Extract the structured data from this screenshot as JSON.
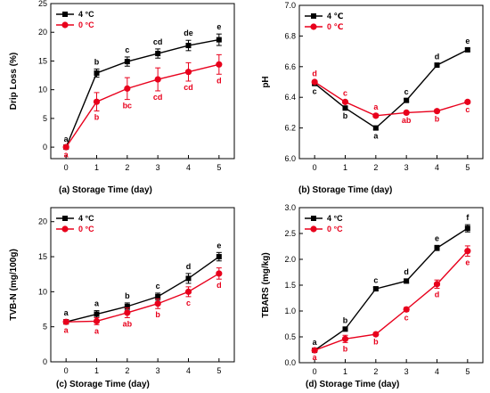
{
  "chart_data": [
    {
      "type": "line",
      "caption": "(a)   Storage Time (day)",
      "ylabel": "Drip Loss (%)",
      "xlim": [
        -0.5,
        5.5
      ],
      "ylim": [
        -2,
        25
      ],
      "x_ticks": [
        "0",
        "1",
        "2",
        "3",
        "4",
        "5"
      ],
      "y_ticks": [
        0,
        5,
        10,
        15,
        20,
        25
      ],
      "legend_position": "top-left",
      "series": [
        {
          "name": "4 °C",
          "color": "#000000",
          "x": [
            0,
            1,
            2,
            3,
            4,
            5
          ],
          "y": [
            0,
            12.9,
            14.9,
            16.3,
            17.7,
            18.7
          ],
          "err": [
            0.2,
            0.7,
            0.8,
            0.8,
            0.9,
            1.0
          ],
          "letters": [
            "a",
            "b",
            "c",
            "cd",
            "de",
            "e"
          ]
        },
        {
          "name": "0 °C",
          "color": "#e8001c",
          "x": [
            0,
            1,
            2,
            3,
            4,
            5
          ],
          "y": [
            0,
            7.9,
            10.2,
            11.8,
            13.1,
            14.4
          ],
          "err": [
            0.2,
            1.6,
            1.9,
            2.0,
            1.6,
            1.7
          ],
          "letters": [
            "a",
            "b",
            "bc",
            "cd",
            "cd",
            "d"
          ]
        }
      ]
    },
    {
      "type": "line",
      "caption": "(b)   Storage Time (day)",
      "ylabel": "pH",
      "xlim": [
        -0.5,
        5.5
      ],
      "ylim": [
        6.0,
        7.0
      ],
      "x_ticks": [
        "0",
        "1",
        "2",
        "3",
        "4",
        "5"
      ],
      "y_ticks": [
        "6.0",
        "6.2",
        "6.4",
        "6.6",
        "6.8",
        "7.0"
      ],
      "legend_position": "top-left",
      "series": [
        {
          "name": "4 ℃",
          "color": "#000000",
          "x": [
            0,
            1,
            2,
            3,
            4,
            5
          ],
          "y": [
            6.49,
            6.33,
            6.2,
            6.38,
            6.61,
            6.71
          ],
          "err": [
            0.01,
            0.01,
            0.01,
            0.01,
            0.01,
            0.01
          ],
          "letters": [
            "c",
            "b",
            "a",
            "c",
            "d",
            "e"
          ]
        },
        {
          "name": "0 ℃",
          "color": "#e8001c",
          "x": [
            0,
            1,
            2,
            3,
            4,
            5
          ],
          "y": [
            6.5,
            6.37,
            6.28,
            6.3,
            6.31,
            6.37
          ],
          "err": [
            0.01,
            0.01,
            0.01,
            0.01,
            0.01,
            0.01
          ],
          "letters": [
            "d",
            "c",
            "a",
            "ab",
            "b",
            "c"
          ]
        }
      ]
    },
    {
      "type": "line",
      "caption": "(c)   Storage Time (day)",
      "ylabel": "TVB-N (mg/100g)",
      "xlim": [
        -0.5,
        5.5
      ],
      "ylim": [
        0,
        22
      ],
      "x_ticks": [
        "0",
        "1",
        "2",
        "3",
        "4",
        "5"
      ],
      "y_ticks": [
        0,
        5,
        10,
        15,
        20
      ],
      "legend_position": "top-left",
      "series": [
        {
          "name": "4 °C",
          "color": "#000000",
          "x": [
            0,
            1,
            2,
            3,
            4,
            5
          ],
          "y": [
            5.7,
            6.8,
            7.9,
            9.3,
            11.9,
            15.0
          ],
          "err": [
            0.3,
            0.5,
            0.5,
            0.5,
            0.7,
            0.6
          ],
          "letters": [
            "a",
            "a",
            "b",
            "c",
            "d",
            "e"
          ]
        },
        {
          "name": "0 °C",
          "color": "#e8001c",
          "x": [
            0,
            1,
            2,
            3,
            4,
            5
          ],
          "y": [
            5.7,
            5.8,
            7.0,
            8.3,
            10.0,
            12.6
          ],
          "err": [
            0.3,
            0.5,
            0.7,
            0.7,
            0.7,
            0.8
          ],
          "letters": [
            "a",
            "a",
            "ab",
            "b",
            "c",
            "d"
          ]
        }
      ]
    },
    {
      "type": "line",
      "caption": "(d)   Storage Time (day)",
      "ylabel": "TBARS (mg/kg)",
      "xlim": [
        -0.5,
        5.5
      ],
      "ylim": [
        0.0,
        3.0
      ],
      "x_ticks": [
        "0",
        "1",
        "2",
        "3",
        "4",
        "5"
      ],
      "y_ticks": [
        "0.0",
        "0.5",
        "1.0",
        "1.5",
        "2.0",
        "2.5",
        "3.0"
      ],
      "legend_position": "top-left",
      "series": [
        {
          "name": "4 °C",
          "color": "#000000",
          "x": [
            0,
            1,
            2,
            3,
            4,
            5
          ],
          "y": [
            0.24,
            0.65,
            1.43,
            1.58,
            2.22,
            2.6
          ],
          "err": [
            0.02,
            0.03,
            0.03,
            0.04,
            0.05,
            0.07
          ],
          "letters": [
            "a",
            "b",
            "c",
            "d",
            "e",
            "f"
          ]
        },
        {
          "name": "0 °C",
          "color": "#e8001c",
          "x": [
            0,
            1,
            2,
            3,
            4,
            5
          ],
          "y": [
            0.24,
            0.46,
            0.55,
            1.03,
            1.52,
            2.16
          ],
          "err": [
            0.02,
            0.07,
            0.02,
            0.04,
            0.08,
            0.1
          ],
          "letters": [
            "a",
            "b",
            "b",
            "c",
            "d",
            "e"
          ]
        }
      ]
    }
  ]
}
